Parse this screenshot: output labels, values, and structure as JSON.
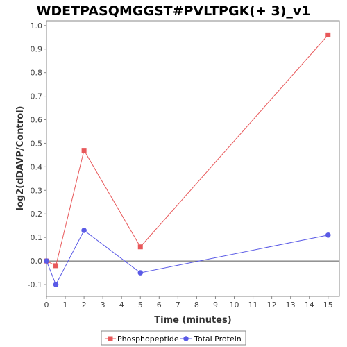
{
  "chart_data": {
    "type": "line",
    "title": "WDETPASQMGGST#PVLTPGK(+ 3)_v1",
    "xlabel": "Time (minutes)",
    "ylabel": "log2(dDAVP/Control)",
    "xlim": [
      0,
      15.6
    ],
    "ylim": [
      -0.15,
      1.02
    ],
    "xticks": [
      0,
      1,
      2,
      3,
      4,
      5,
      6,
      7,
      8,
      9,
      10,
      11,
      12,
      13,
      14,
      15
    ],
    "xtick_labels": [
      "0",
      "1",
      "2",
      "3",
      "4",
      "5",
      "6",
      "7",
      "8",
      "9",
      "10",
      "11",
      "12",
      "13",
      "14",
      "15"
    ],
    "yticks": [
      -0.1,
      0.0,
      0.1,
      0.2,
      0.3,
      0.4,
      0.5,
      0.6,
      0.7,
      0.8,
      0.9,
      1.0
    ],
    "ytick_labels": [
      "-0.1",
      "0.0",
      "0.1",
      "0.2",
      "0.3",
      "0.4",
      "0.5",
      "0.6",
      "0.7",
      "0.8",
      "0.9",
      "1.0"
    ],
    "zero_line": true,
    "grid": false,
    "legend_position": "bottom",
    "series": [
      {
        "name": "Phosphopeptide",
        "marker": "square",
        "color": "#e8585a",
        "x": [
          0,
          0.5,
          2,
          5,
          15
        ],
        "y": [
          0.0,
          -0.02,
          0.47,
          0.06,
          0.96
        ]
      },
      {
        "name": "Total Protein",
        "marker": "circle",
        "color": "#5a5ae6",
        "x": [
          0,
          0.5,
          2,
          5,
          15
        ],
        "y": [
          0.0,
          -0.1,
          0.13,
          -0.05,
          0.11
        ]
      }
    ]
  }
}
